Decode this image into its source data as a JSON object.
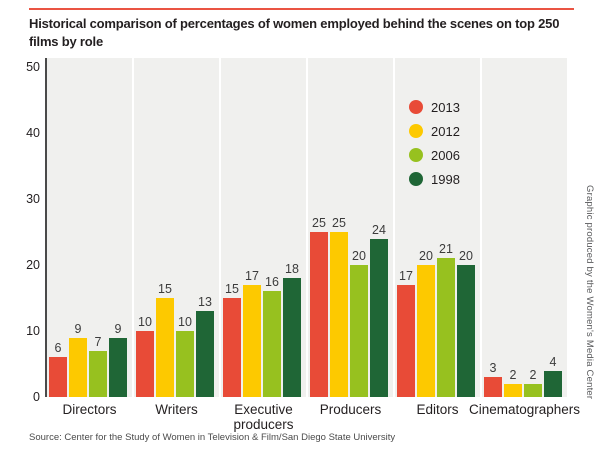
{
  "page": {
    "title_line1": "Historical comparison of percentages of women employed behind the scenes on top 250",
    "title_line2": "films by role",
    "source": "Source: Center for the Study of Women in Television & Film/San Diego State University",
    "credit_vertical": "Graphic produced by the Women's Media Center"
  },
  "colors": {
    "rule": "#ea5443",
    "plot_bg": "#f0f0ee",
    "axis": "#4a4a4a"
  },
  "chart_data": {
    "type": "bar",
    "title": "Historical comparison of percentages of women employed behind the scenes on top 250 films by role",
    "categories": [
      "Directors",
      "Writers",
      "Executive producers",
      "Producers",
      "Editors",
      "Cinematographers"
    ],
    "series": [
      {
        "name": "2013",
        "color": "#e84b37",
        "values": [
          6,
          10,
          15,
          25,
          17,
          3
        ]
      },
      {
        "name": "2012",
        "color": "#fdc900",
        "values": [
          9,
          15,
          17,
          25,
          20,
          2
        ]
      },
      {
        "name": "2006",
        "color": "#97c11f",
        "values": [
          7,
          10,
          16,
          20,
          21,
          2
        ]
      },
      {
        "name": "1998",
        "color": "#1f6636",
        "values": [
          9,
          13,
          18,
          24,
          20,
          4
        ]
      }
    ],
    "y_ticks": [
      0,
      10,
      20,
      30,
      40,
      50
    ],
    "ylim": [
      0,
      50
    ],
    "xlabel": "",
    "ylabel": "",
    "grid": "white vertical separators between categories",
    "legend_position": "inside top-right",
    "value_labels": true
  }
}
